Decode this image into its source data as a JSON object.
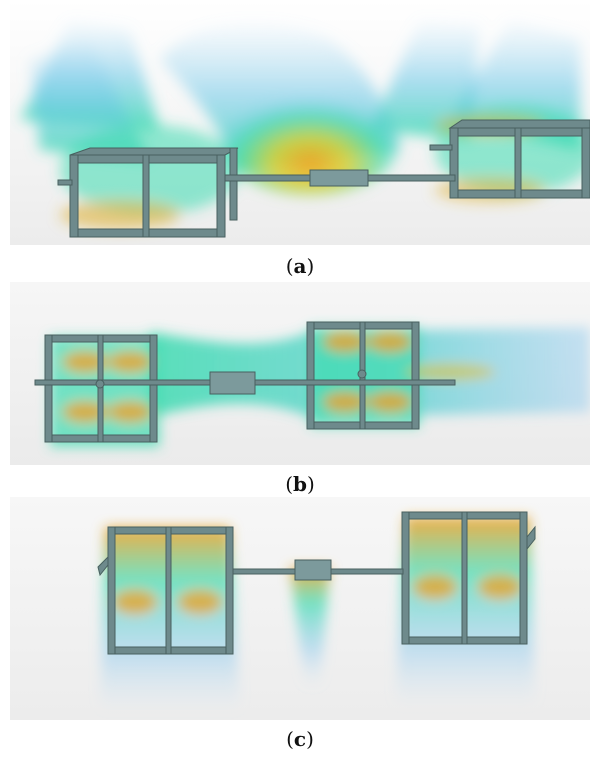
{
  "figure": {
    "panels": [
      {
        "id": "a",
        "caption_open": "(",
        "caption_letter": "a",
        "caption_close": ")",
        "view": "perspective"
      },
      {
        "id": "b",
        "caption_open": "(",
        "caption_letter": "b",
        "caption_close": ")",
        "view": "top"
      },
      {
        "id": "c",
        "caption_open": "(",
        "caption_letter": "c",
        "caption_close": ")",
        "view": "front"
      }
    ],
    "colors": {
      "background": "#eeeeef",
      "frame": "#6e8a8c",
      "frame_edge": "#48605f",
      "flow_low": "#7fc4ee",
      "flow_mid": "#3ddbb0",
      "flow_high": "#f0a020"
    }
  }
}
